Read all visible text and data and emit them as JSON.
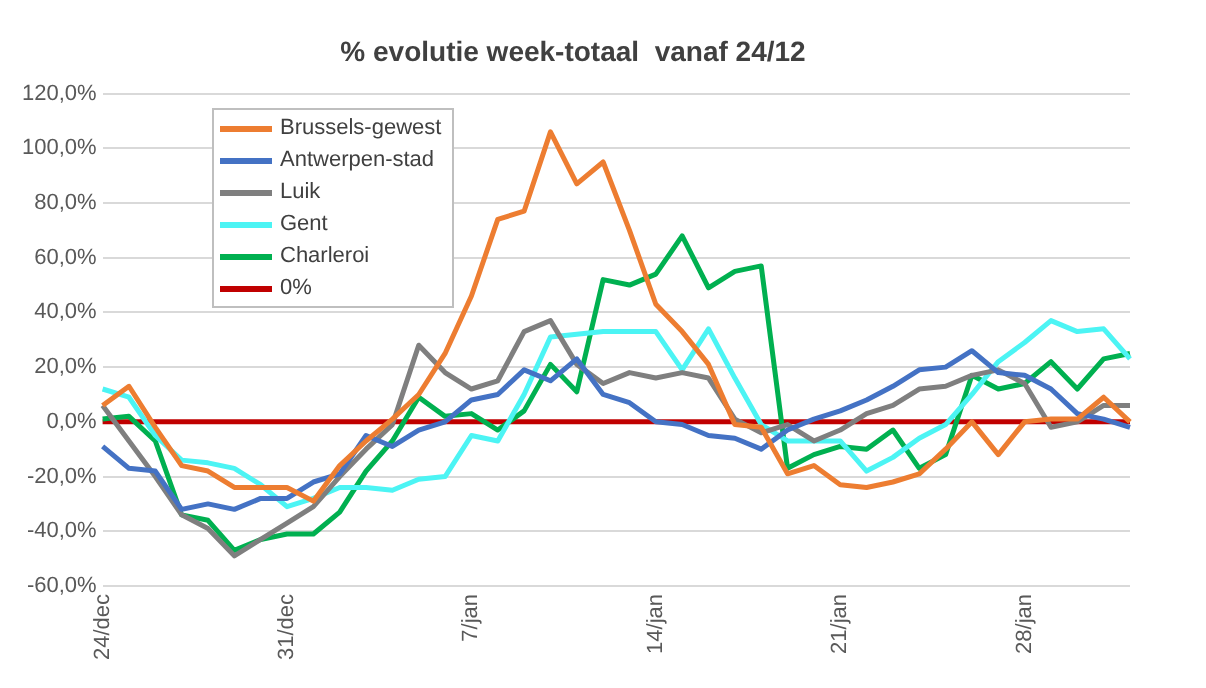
{
  "chart_data": {
    "type": "line",
    "title": "% evolutie week-totaal  vanaf 24/12",
    "categories": [
      "24/dec",
      null,
      null,
      null,
      null,
      null,
      null,
      "31/dec",
      null,
      null,
      null,
      null,
      null,
      null,
      "7/jan",
      null,
      null,
      null,
      null,
      null,
      null,
      "14/jan",
      null,
      null,
      null,
      null,
      null,
      null,
      "21/jan",
      null,
      null,
      null,
      null,
      null,
      null,
      "28/jan",
      null,
      null,
      null,
      null
    ],
    "series": [
      {
        "name": "Brussels-gewest",
        "color": "#ed7d31",
        "values": [
          6,
          13,
          -2,
          -16,
          -18,
          -24,
          -24,
          -24,
          -29,
          -16,
          -7,
          1,
          10,
          25,
          46,
          74,
          77,
          106,
          87,
          95,
          70,
          43,
          33,
          21,
          -1,
          -2,
          -19,
          -16,
          -23,
          -24,
          -22,
          -19,
          -10,
          0,
          -12,
          0,
          1,
          1,
          9,
          0
        ]
      },
      {
        "name": "Antwerpen-stad",
        "color": "#4472c4",
        "values": [
          -9,
          -17,
          -18,
          -32,
          -30,
          -32,
          -28,
          -28,
          -22,
          -19,
          -5,
          -9,
          -3,
          0,
          8,
          10,
          19,
          15,
          23,
          10,
          7,
          0,
          -1,
          -5,
          -6,
          -10,
          -3,
          1,
          4,
          8,
          13,
          19,
          20,
          26,
          18,
          17,
          12,
          3,
          1,
          -2
        ]
      },
      {
        "name": "Luik",
        "color": "#7f7f7f",
        "values": [
          6,
          -7,
          -20,
          -34,
          -39,
          -49,
          -43,
          -37,
          -31,
          -20,
          -10,
          -1,
          28,
          18,
          12,
          15,
          33,
          37,
          21,
          14,
          18,
          16,
          18,
          16,
          1,
          -4,
          -1,
          -7,
          -3,
          3,
          6,
          12,
          13,
          17,
          19,
          14,
          -2,
          0,
          6,
          6
        ]
      },
      {
        "name": "Gent",
        "color": "#4cf4f4",
        "values": [
          12,
          9,
          -5,
          -14,
          -15,
          -17,
          -23,
          -31,
          -28,
          -24,
          -24,
          -25,
          -21,
          -20,
          -5,
          -7,
          10,
          31,
          32,
          33,
          33,
          33,
          19,
          34,
          16,
          -1,
          -7,
          -7,
          -7,
          -18,
          -13,
          -6,
          -1,
          10,
          22,
          29,
          37,
          33,
          34,
          23
        ]
      },
      {
        "name": "Charleroi",
        "color": "#00b050",
        "values": [
          1,
          2,
          -7,
          -34,
          -36,
          -47,
          -43,
          -41,
          -41,
          -33,
          -18,
          -7,
          9,
          2,
          3,
          -3,
          4,
          21,
          11,
          52,
          50,
          54,
          68,
          49,
          55,
          57,
          -17,
          -12,
          -9,
          -10,
          -3,
          -17,
          -12,
          17,
          12,
          14,
          22,
          12,
          23,
          25
        ]
      },
      {
        "name": "0%",
        "color": "#c00000",
        "values": [
          0,
          0,
          0,
          0,
          0,
          0,
          0,
          0,
          0,
          0,
          0,
          0,
          0,
          0,
          0,
          0,
          0,
          0,
          0,
          0,
          0,
          0,
          0,
          0,
          0,
          0,
          0,
          0,
          0,
          0,
          0,
          0,
          0,
          0,
          0,
          0,
          0,
          0,
          0,
          0
        ]
      }
    ],
    "ylim": [
      -60,
      120
    ],
    "yticks": [
      {
        "value": -60,
        "label": "-60,0%"
      },
      {
        "value": -40,
        "label": "-40,0%"
      },
      {
        "value": -20,
        "label": "-20,0%"
      },
      {
        "value": 0,
        "label": "0,0%"
      },
      {
        "value": 20,
        "label": "20,0%"
      },
      {
        "value": 40,
        "label": "40,0%"
      },
      {
        "value": 60,
        "label": "60,0%"
      },
      {
        "value": 80,
        "label": "80,0%"
      },
      {
        "value": 100,
        "label": "100,0%"
      },
      {
        "value": 120,
        "label": "120,0%"
      }
    ],
    "grid": "y",
    "legend": "top left",
    "marker": "none",
    "line_style": "solid"
  }
}
